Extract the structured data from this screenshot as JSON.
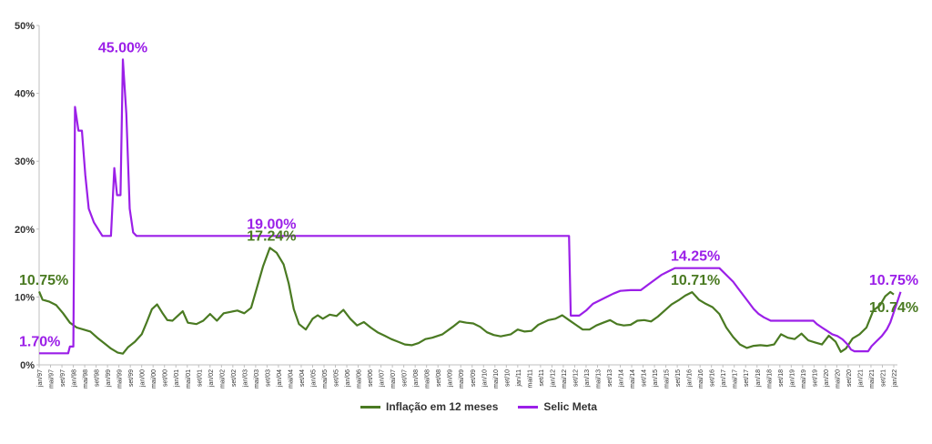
{
  "chart_data": {
    "type": "line",
    "title": "",
    "xlabel": "",
    "ylabel": "",
    "ylim": [
      0,
      50
    ],
    "yticks": [
      "0%",
      "10%",
      "20%",
      "30%",
      "40%",
      "50%"
    ],
    "xlim": [
      1997.0,
      2022.0
    ],
    "xticks": [
      "jan/97",
      "mai/97",
      "set/97",
      "jan/98",
      "mai/98",
      "set/98",
      "jan/99",
      "mai/99",
      "set/99",
      "jan/00",
      "mai/00",
      "set/00",
      "jan/01",
      "mai/01",
      "set/01",
      "jan/02",
      "mai/02",
      "set/02",
      "jan/03",
      "mai/03",
      "set/03",
      "jan/04",
      "mai/04",
      "set/04",
      "jan/05",
      "mai/05",
      "set/05",
      "jan/06",
      "mai/06",
      "set/06",
      "jan/07",
      "mai/07",
      "set/07",
      "jan/08",
      "mai/08",
      "set/08",
      "jan/09",
      "mai/09",
      "set/09",
      "jan/10",
      "mai/10",
      "set/10",
      "jan/11",
      "mai/11",
      "set/11",
      "jan/12",
      "mai/12",
      "set/12",
      "jan/13",
      "mai/13",
      "set/13",
      "jan/14",
      "mai/14",
      "set/14",
      "jan/15",
      "mai/15",
      "set/15",
      "jan/16",
      "mai/16",
      "set/16",
      "jan/17",
      "mai/17",
      "set/17",
      "jan/18",
      "mai/18",
      "set/18",
      "jan/19",
      "mai/19",
      "set/19",
      "jan/20",
      "mai/20",
      "set/20",
      "jan/21",
      "mai/21",
      "set/21",
      "jan/22"
    ],
    "grid": false,
    "legend_position": "bottom",
    "series": [
      {
        "name": "Inflação em 12 meses",
        "color": "#4a7a22",
        "points": [
          [
            1997.0,
            10.8
          ],
          [
            1997.1,
            9.6
          ],
          [
            1997.3,
            9.3
          ],
          [
            1997.5,
            8.8
          ],
          [
            1997.7,
            7.6
          ],
          [
            1997.9,
            6.2
          ],
          [
            1998.1,
            5.5
          ],
          [
            1998.3,
            5.2
          ],
          [
            1998.5,
            4.9
          ],
          [
            1998.7,
            4.0
          ],
          [
            1998.9,
            3.2
          ],
          [
            1999.1,
            2.4
          ],
          [
            1999.3,
            1.8
          ],
          [
            1999.45,
            1.65
          ],
          [
            1999.6,
            2.6
          ],
          [
            1999.8,
            3.4
          ],
          [
            2000.0,
            4.5
          ],
          [
            2000.15,
            6.3
          ],
          [
            2000.3,
            8.2
          ],
          [
            2000.45,
            8.9
          ],
          [
            2000.6,
            7.7
          ],
          [
            2000.75,
            6.6
          ],
          [
            2000.9,
            6.5
          ],
          [
            2001.05,
            7.2
          ],
          [
            2001.2,
            7.9
          ],
          [
            2001.35,
            6.2
          ],
          [
            2001.6,
            6.0
          ],
          [
            2001.8,
            6.5
          ],
          [
            2002.0,
            7.5
          ],
          [
            2002.2,
            6.5
          ],
          [
            2002.4,
            7.6
          ],
          [
            2002.6,
            7.8
          ],
          [
            2002.8,
            8.0
          ],
          [
            2003.0,
            7.6
          ],
          [
            2003.2,
            8.4
          ],
          [
            2003.35,
            11.0
          ],
          [
            2003.55,
            14.5
          ],
          [
            2003.75,
            17.24
          ],
          [
            2003.95,
            16.5
          ],
          [
            2004.15,
            14.8
          ],
          [
            2004.3,
            12.0
          ],
          [
            2004.45,
            8.2
          ],
          [
            2004.6,
            6.0
          ],
          [
            2004.8,
            5.2
          ],
          [
            2005.0,
            6.8
          ],
          [
            2005.15,
            7.3
          ],
          [
            2005.3,
            6.8
          ],
          [
            2005.5,
            7.4
          ],
          [
            2005.7,
            7.2
          ],
          [
            2005.9,
            8.1
          ],
          [
            2006.1,
            6.8
          ],
          [
            2006.3,
            5.8
          ],
          [
            2006.5,
            6.3
          ],
          [
            2006.7,
            5.5
          ],
          [
            2006.9,
            4.8
          ],
          [
            2007.1,
            4.3
          ],
          [
            2007.3,
            3.8
          ],
          [
            2007.5,
            3.4
          ],
          [
            2007.7,
            3.0
          ],
          [
            2007.9,
            2.9
          ],
          [
            2008.1,
            3.2
          ],
          [
            2008.3,
            3.8
          ],
          [
            2008.5,
            4.0
          ],
          [
            2008.8,
            4.5
          ],
          [
            2009.1,
            5.6
          ],
          [
            2009.3,
            6.4
          ],
          [
            2009.5,
            6.2
          ],
          [
            2009.7,
            6.1
          ],
          [
            2009.9,
            5.6
          ],
          [
            2010.1,
            4.8
          ],
          [
            2010.3,
            4.4
          ],
          [
            2010.5,
            4.2
          ],
          [
            2010.8,
            4.5
          ],
          [
            2011.0,
            5.2
          ],
          [
            2011.2,
            4.9
          ],
          [
            2011.4,
            5.0
          ],
          [
            2011.6,
            5.9
          ],
          [
            2011.9,
            6.6
          ],
          [
            2012.1,
            6.8
          ],
          [
            2012.3,
            7.3
          ],
          [
            2012.5,
            6.6
          ],
          [
            2012.7,
            5.9
          ],
          [
            2012.9,
            5.2
          ],
          [
            2013.1,
            5.2
          ],
          [
            2013.3,
            5.8
          ],
          [
            2013.5,
            6.2
          ],
          [
            2013.7,
            6.6
          ],
          [
            2013.9,
            6.0
          ],
          [
            2014.1,
            5.8
          ],
          [
            2014.3,
            5.9
          ],
          [
            2014.5,
            6.5
          ],
          [
            2014.7,
            6.6
          ],
          [
            2014.9,
            6.4
          ],
          [
            2015.1,
            7.1
          ],
          [
            2015.3,
            8.0
          ],
          [
            2015.5,
            8.9
          ],
          [
            2015.7,
            9.5
          ],
          [
            2015.9,
            10.2
          ],
          [
            2016.1,
            10.71
          ],
          [
            2016.3,
            9.6
          ],
          [
            2016.5,
            9.0
          ],
          [
            2016.7,
            8.5
          ],
          [
            2016.9,
            7.5
          ],
          [
            2017.1,
            5.5
          ],
          [
            2017.3,
            4.1
          ],
          [
            2017.5,
            3.0
          ],
          [
            2017.7,
            2.5
          ],
          [
            2017.9,
            2.8
          ],
          [
            2018.1,
            2.9
          ],
          [
            2018.3,
            2.8
          ],
          [
            2018.5,
            3.0
          ],
          [
            2018.7,
            4.5
          ],
          [
            2018.9,
            4.0
          ],
          [
            2019.1,
            3.8
          ],
          [
            2019.3,
            4.6
          ],
          [
            2019.5,
            3.6
          ],
          [
            2019.7,
            3.3
          ],
          [
            2019.9,
            3.0
          ],
          [
            2020.1,
            4.3
          ],
          [
            2020.3,
            3.4
          ],
          [
            2020.45,
            1.9
          ],
          [
            2020.6,
            2.4
          ],
          [
            2020.8,
            3.9
          ],
          [
            2021.0,
            4.5
          ],
          [
            2021.2,
            5.5
          ],
          [
            2021.4,
            8.0
          ],
          [
            2021.6,
            8.8
          ],
          [
            2021.75,
            10.1
          ],
          [
            2021.9,
            10.74
          ],
          [
            2022.0,
            10.38
          ]
        ]
      },
      {
        "name": "Selic Meta",
        "color": "#9b1fe8",
        "points": [
          [
            1997.0,
            1.7
          ],
          [
            1997.85,
            1.7
          ],
          [
            1997.9,
            2.7
          ],
          [
            1998.0,
            2.7
          ],
          [
            1998.05,
            38.0
          ],
          [
            1998.15,
            34.5
          ],
          [
            1998.25,
            34.5
          ],
          [
            1998.35,
            28.0
          ],
          [
            1998.45,
            23.0
          ],
          [
            1998.6,
            21.0
          ],
          [
            1998.75,
            19.8
          ],
          [
            1998.85,
            19.0
          ],
          [
            1999.1,
            19.0
          ],
          [
            1999.2,
            29.0
          ],
          [
            1999.28,
            25.0
          ],
          [
            1999.38,
            25.0
          ],
          [
            1999.45,
            45.0
          ],
          [
            1999.55,
            37.0
          ],
          [
            1999.65,
            23.0
          ],
          [
            1999.75,
            19.5
          ],
          [
            1999.85,
            19.0
          ],
          [
            2012.5,
            19.0
          ],
          [
            2012.55,
            7.25
          ],
          [
            2012.8,
            7.25
          ],
          [
            2013.0,
            8.0
          ],
          [
            2013.2,
            9.0
          ],
          [
            2013.4,
            9.5
          ],
          [
            2013.6,
            10.0
          ],
          [
            2013.8,
            10.5
          ],
          [
            2014.0,
            10.9
          ],
          [
            2014.3,
            11.0
          ],
          [
            2014.6,
            11.0
          ],
          [
            2014.8,
            11.75
          ],
          [
            2015.0,
            12.5
          ],
          [
            2015.2,
            13.25
          ],
          [
            2015.4,
            13.75
          ],
          [
            2015.6,
            14.25
          ],
          [
            2016.9,
            14.25
          ],
          [
            2017.0,
            13.75
          ],
          [
            2017.15,
            13.0
          ],
          [
            2017.3,
            12.25
          ],
          [
            2017.45,
            11.25
          ],
          [
            2017.6,
            10.25
          ],
          [
            2017.75,
            9.25
          ],
          [
            2017.9,
            8.25
          ],
          [
            2018.05,
            7.5
          ],
          [
            2018.2,
            7.0
          ],
          [
            2018.4,
            6.5
          ],
          [
            2019.65,
            6.5
          ],
          [
            2019.75,
            6.0
          ],
          [
            2019.9,
            5.5
          ],
          [
            2020.05,
            5.0
          ],
          [
            2020.2,
            4.5
          ],
          [
            2020.35,
            4.25
          ],
          [
            2020.5,
            3.75
          ],
          [
            2020.65,
            3.0
          ],
          [
            2020.75,
            2.25
          ],
          [
            2020.85,
            2.0
          ],
          [
            2021.25,
            2.0
          ],
          [
            2021.35,
            2.75
          ],
          [
            2021.5,
            3.5
          ],
          [
            2021.65,
            4.25
          ],
          [
            2021.8,
            5.25
          ],
          [
            2021.9,
            6.25
          ],
          [
            2022.0,
            7.75
          ],
          [
            2022.1,
            9.25
          ],
          [
            2022.2,
            10.75
          ]
        ]
      }
    ],
    "annotations": [
      {
        "text": "45.00%",
        "x": 1999.45,
        "y": 45.0,
        "color": "#9b1fe8",
        "anchor": "middle",
        "placement": "above"
      },
      {
        "text": "19.00%",
        "x": 2003.8,
        "y": 19.0,
        "color": "#9b1fe8",
        "anchor": "middle",
        "placement": "above"
      },
      {
        "text": "17.24%",
        "x": 2003.8,
        "y": 17.24,
        "color": "#4a7a22",
        "anchor": "middle",
        "placement": "above"
      },
      {
        "text": "10.75%",
        "x": 1997.0,
        "y": 10.75,
        "color": "#4a7a22",
        "anchor": "start",
        "placement": "above"
      },
      {
        "text": "1.70%",
        "x": 1997.0,
        "y": 1.7,
        "color": "#9b1fe8",
        "anchor": "start",
        "placement": "above"
      },
      {
        "text": "14.25%",
        "x": 2016.2,
        "y": 14.25,
        "color": "#9b1fe8",
        "anchor": "middle",
        "placement": "above"
      },
      {
        "text": "10.71%",
        "x": 2016.2,
        "y": 10.71,
        "color": "#4a7a22",
        "anchor": "middle",
        "placement": "above"
      },
      {
        "text": "10.75%",
        "x": 2022.0,
        "y": 10.75,
        "color": "#9b1fe8",
        "anchor": "middle",
        "placement": "above"
      },
      {
        "text": "10.74%",
        "x": 2022.0,
        "y": 10.74,
        "color": "#4a7a22",
        "anchor": "middle",
        "placement": "below"
      }
    ]
  }
}
